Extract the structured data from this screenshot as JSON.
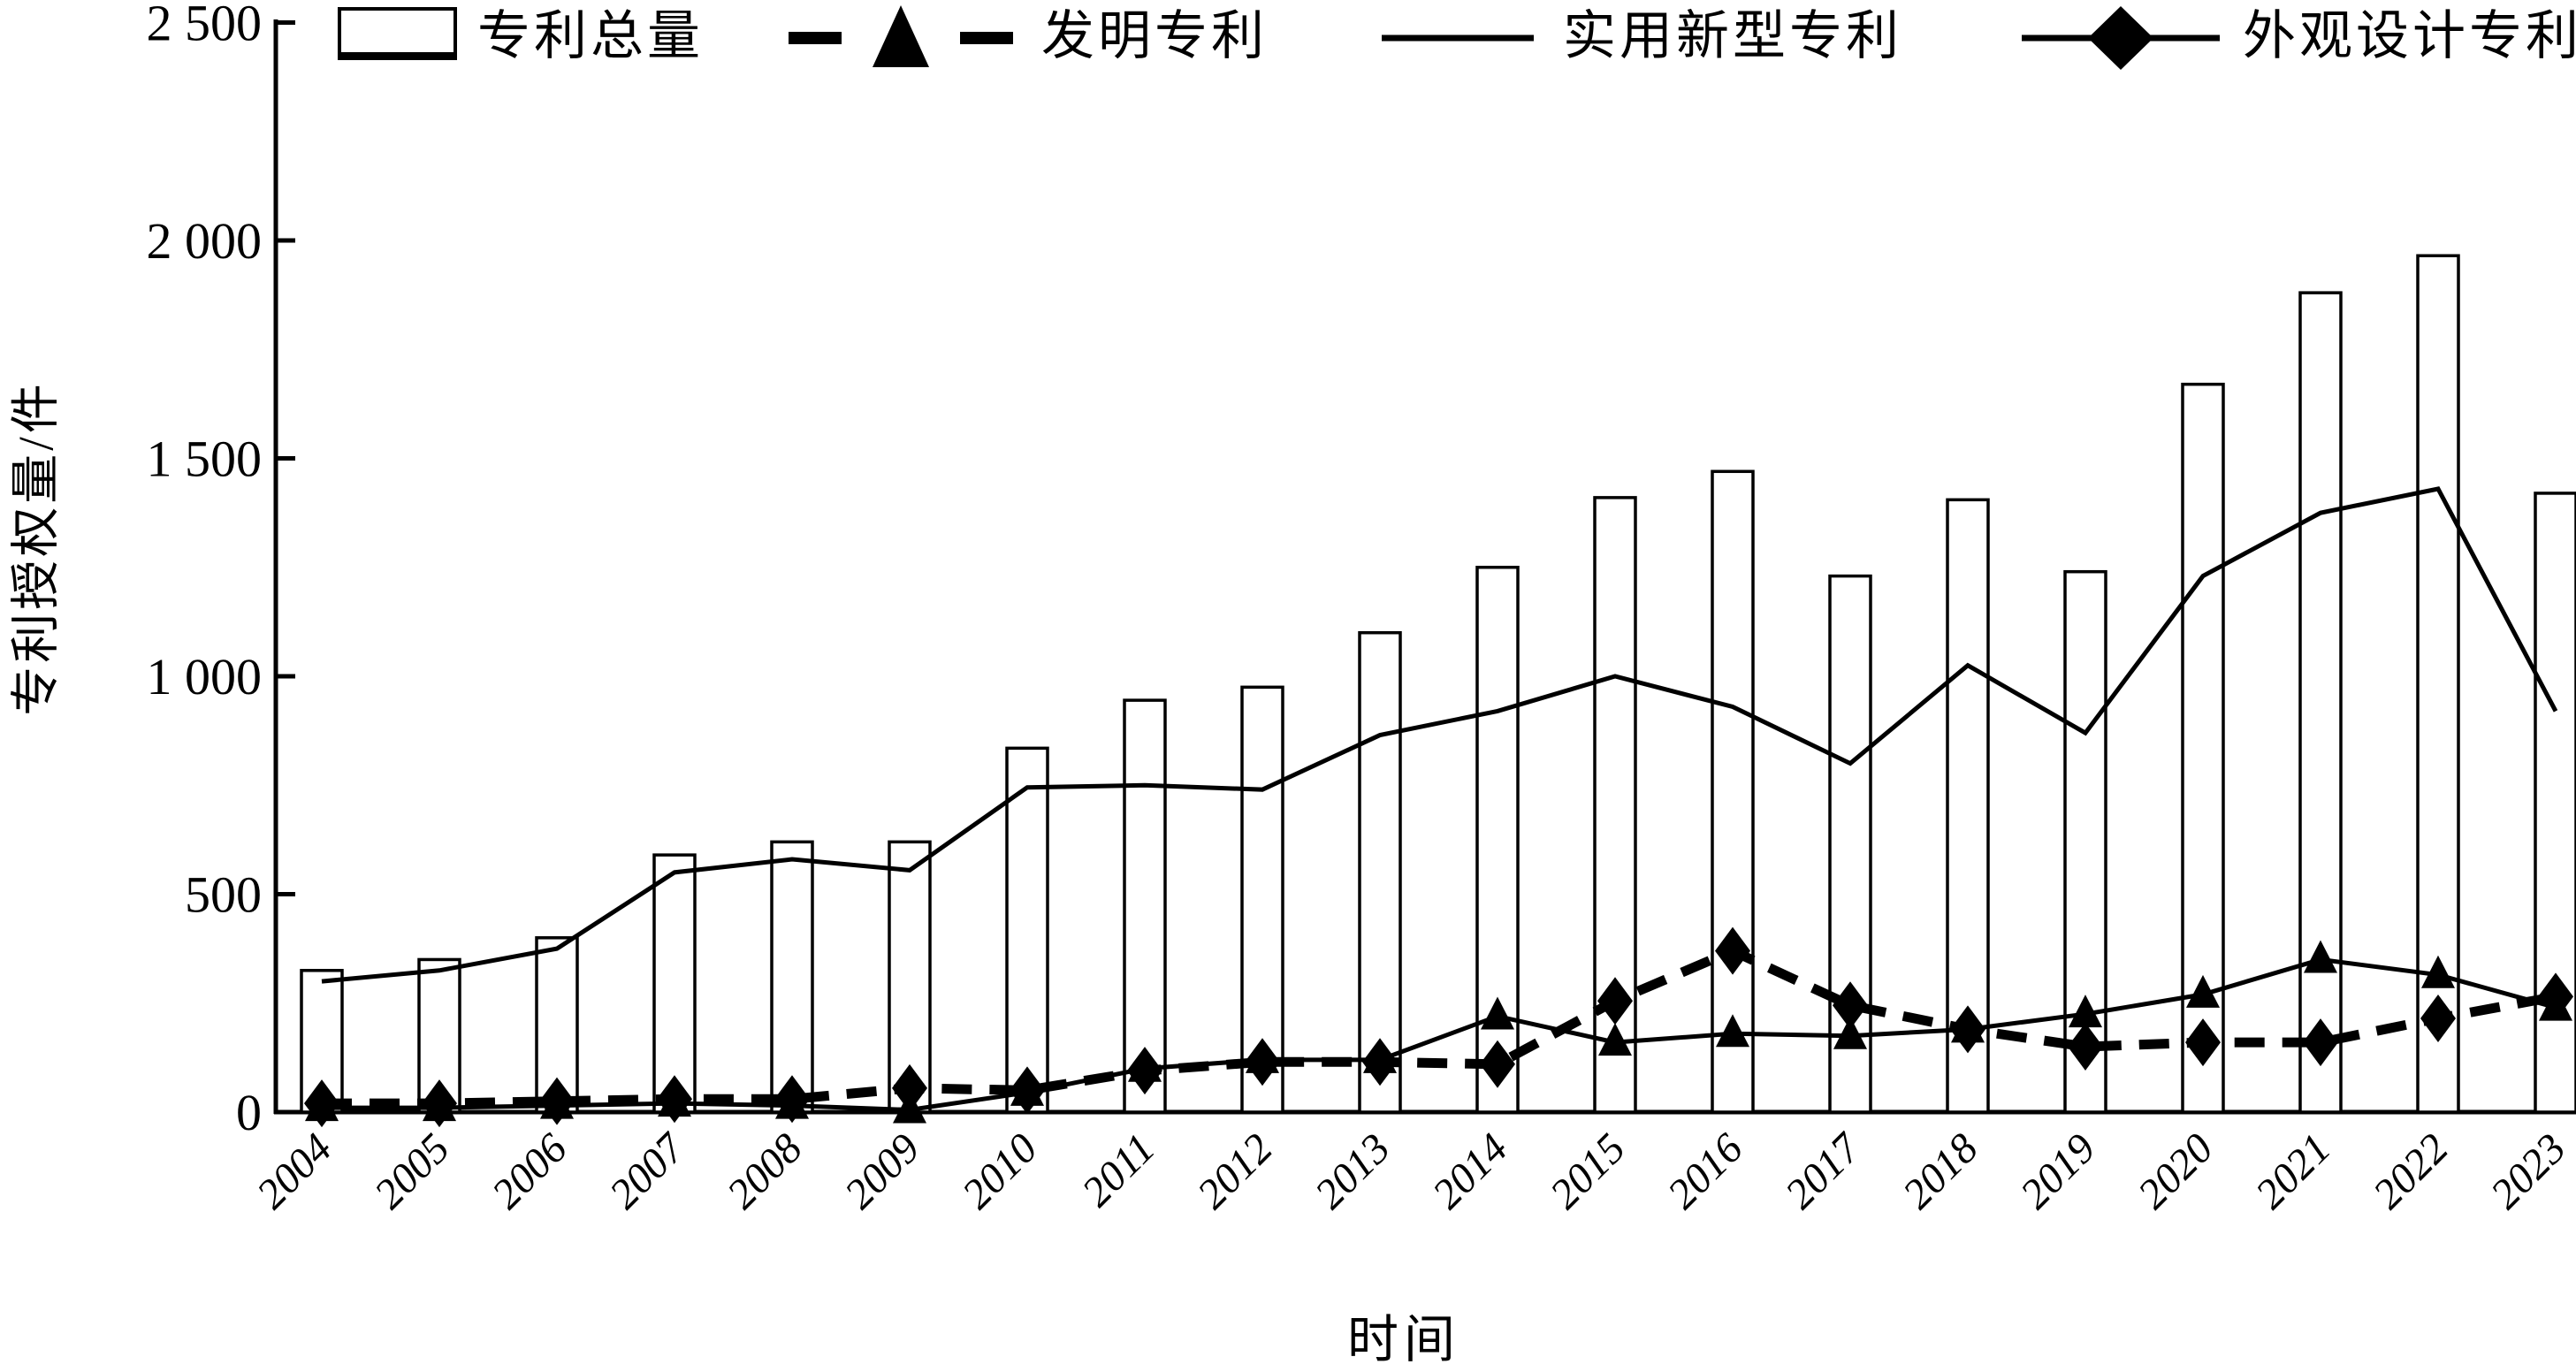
{
  "figure": {
    "y_axis_title": "专利授权量/件",
    "x_axis_title": "时间",
    "y_ticks": [
      {
        "label": "0",
        "value": 0
      },
      {
        "label": "500",
        "value": 500
      },
      {
        "label": "1 000",
        "value": 1000
      },
      {
        "label": "1 500",
        "value": 1500
      },
      {
        "label": "2 000",
        "value": 2000
      },
      {
        "label": "2 500",
        "value": 2500
      }
    ]
  },
  "legend": [
    {
      "label": "专利总量",
      "symbol": "hollow-bar"
    },
    {
      "label": "发明专利",
      "symbol": "thick-dashes-with-triangle"
    },
    {
      "label": "实用新型专利",
      "symbol": "thin-solid-line"
    },
    {
      "label": "外观设计专利",
      "symbol": "thin-solid-line-with-diamond"
    }
  ],
  "chart_data": {
    "type": "bar",
    "subtype": "bar-and-line-combo",
    "title": "",
    "xlabel": "时间",
    "ylabel": "专利授权量/件",
    "ylim": [
      0,
      2500
    ],
    "y_tick_interval": 500,
    "grid": false,
    "legend_position": "top",
    "x_tick_rotation": -45,
    "categories": [
      "2004",
      "2005",
      "2006",
      "2007",
      "2008",
      "2009",
      "2010",
      "2011",
      "2012",
      "2013",
      "2014",
      "2015",
      "2016",
      "2017",
      "2018",
      "2019",
      "2020",
      "2021",
      "2022",
      "2023"
    ],
    "series": [
      {
        "name": "专利总量",
        "type": "bar",
        "bar_fill": "#ffffff",
        "bar_edge": "#000000",
        "values": [
          325,
          350,
          400,
          590,
          620,
          620,
          835,
          945,
          975,
          1100,
          1250,
          1410,
          1470,
          1230,
          1405,
          1240,
          1670,
          1880,
          1965,
          1420
        ]
      },
      {
        "name": "发明专利",
        "type": "line",
        "marker": "triangle",
        "line_style_plot": "solid-thin",
        "line_style_legend": "dashed-thick",
        "values": [
          10,
          10,
          15,
          20,
          15,
          5,
          45,
          100,
          120,
          120,
          220,
          160,
          180,
          175,
          190,
          225,
          270,
          350,
          315,
          240
        ]
      },
      {
        "name": "实用新型专利",
        "type": "line",
        "marker": "none",
        "line_style_plot": "solid-thin",
        "line_style_legend": "solid-thin",
        "values": [
          300,
          325,
          375,
          550,
          580,
          555,
          745,
          750,
          740,
          865,
          920,
          1000,
          930,
          800,
          1025,
          870,
          1230,
          1375,
          1430,
          920
        ]
      },
      {
        "name": "外观设计专利",
        "type": "line",
        "marker": "diamond",
        "line_style_plot": "dashed-thick",
        "line_style_legend": "solid-thin",
        "values": [
          20,
          20,
          25,
          30,
          30,
          55,
          50,
          95,
          115,
          115,
          110,
          255,
          370,
          245,
          190,
          150,
          160,
          160,
          215,
          265
        ]
      }
    ],
    "colors": {
      "ink": "#000000",
      "background": "#ffffff"
    }
  }
}
